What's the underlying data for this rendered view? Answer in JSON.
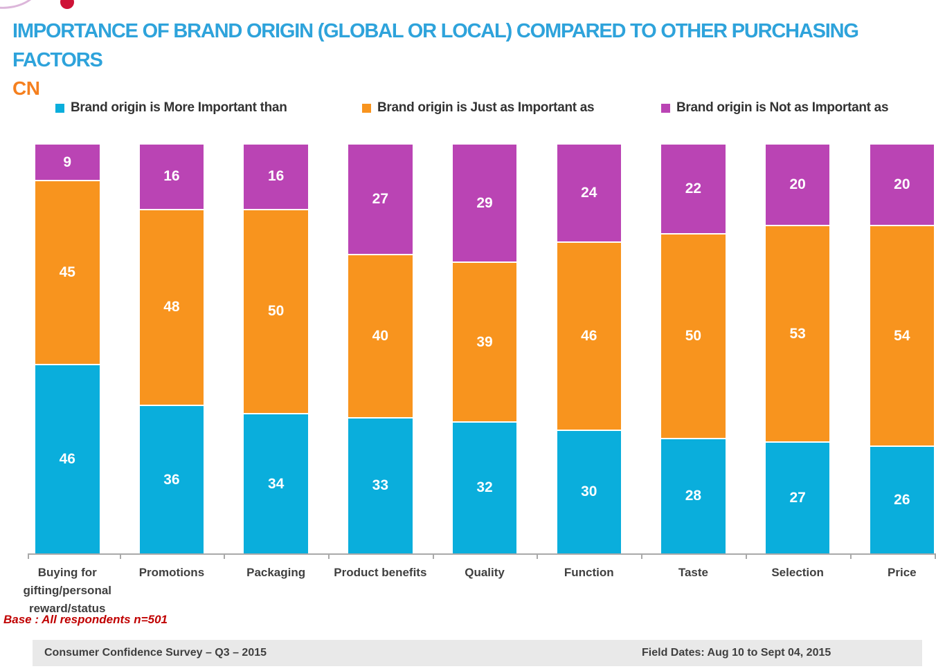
{
  "header": {
    "title_line1": "IMPORTANCE OF  BRAND ORIGIN (GLOBAL OR LOCAL) COMPARED TO OTHER PURCHASING",
    "title_line2": "FACTORS",
    "country": "CN"
  },
  "chart_data": {
    "type": "bar",
    "stacked": true,
    "orientation": "vertical",
    "title": "Importance of brand origin compared to other purchasing factors (CN)",
    "xlabel": "",
    "ylabel": "",
    "ylim": [
      0,
      100
    ],
    "grid": false,
    "legend_position": "top",
    "value_labels": true,
    "categories": [
      "Buying for gifting/personal reward/status",
      "Promotions",
      "Packaging",
      "Product benefits",
      "Quality",
      "Function",
      "Taste",
      "Selection",
      "Price"
    ],
    "series": [
      {
        "name": "Brand origin is More Important than",
        "color": "#0aaedc",
        "values": [
          46,
          36,
          34,
          33,
          32,
          30,
          28,
          27,
          26
        ]
      },
      {
        "name": "Brand origin is Just as Important as",
        "color": "#f8941e",
        "values": [
          45,
          48,
          50,
          40,
          39,
          46,
          50,
          53,
          54
        ]
      },
      {
        "name": "Brand origin is Not as Important as",
        "color": "#ba44b4",
        "values": [
          9,
          16,
          16,
          27,
          29,
          24,
          22,
          20,
          20
        ]
      }
    ]
  },
  "base_note": "Base : All respondents n=501",
  "footer": {
    "left": "Consumer Confidence Survey – Q3 – 2015",
    "right": "Field Dates: Aug 10 to Sept 04, 2015"
  },
  "colors": {
    "title_blue": "#2ea3db",
    "country_orange": "#f5801f",
    "series_blue": "#0aaedc",
    "series_orange": "#f8941e",
    "series_magenta": "#ba44b4",
    "base_note_red": "#c00000",
    "footer_bg": "#e9e9e9",
    "axis_gray": "#a9a9a9",
    "logo_red": "#ce1236"
  }
}
